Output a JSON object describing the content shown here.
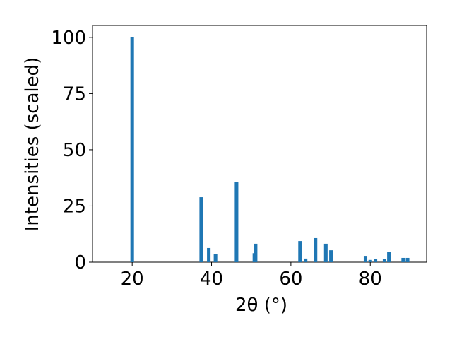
{
  "chart_data": {
    "type": "bar",
    "xlabel": "2θ (°)",
    "ylabel": "Intensities (scaled)",
    "x": [
      20.0,
      37.4,
      39.3,
      41.0,
      46.3,
      50.8,
      51.1,
      62.3,
      63.7,
      66.2,
      68.8,
      70.1,
      78.8,
      80.0,
      81.3,
      83.6,
      84.7,
      88.3,
      89.4
    ],
    "values": [
      100,
      28.9,
      6.3,
      3.5,
      35.8,
      4.0,
      8.2,
      9.4,
      1.6,
      10.7,
      8.2,
      5.3,
      2.8,
      1.0,
      1.3,
      1.3,
      4.7,
      1.9,
      1.9
    ],
    "color": "#1f77b4",
    "xlim": [
      10.0,
      94.2
    ],
    "ylim": [
      0,
      105.3
    ],
    "xticks": [
      20,
      40,
      60,
      80
    ],
    "yticks": [
      0,
      25,
      50,
      75,
      100
    ]
  }
}
